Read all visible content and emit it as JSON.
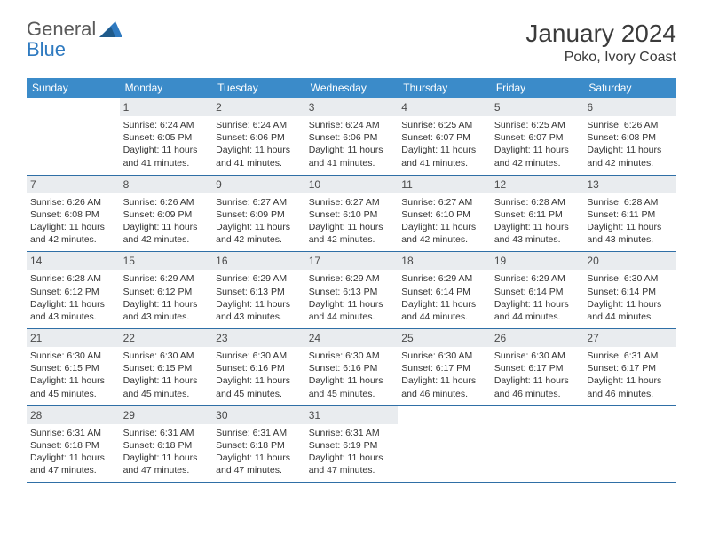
{
  "logo": {
    "word1": "General",
    "word2": "Blue"
  },
  "title": "January 2024",
  "location": "Poko, Ivory Coast",
  "colors": {
    "header_bg": "#3b8bc9",
    "header_text": "#ffffff",
    "daynum_bg": "#e9ecef",
    "week_border": "#2f6fa6",
    "body_text": "#333333",
    "logo_gray": "#5a5a5a",
    "logo_blue": "#2f7ac0"
  },
  "daysOfWeek": [
    "Sunday",
    "Monday",
    "Tuesday",
    "Wednesday",
    "Thursday",
    "Friday",
    "Saturday"
  ],
  "weeks": [
    [
      {
        "n": "",
        "empty": true
      },
      {
        "n": "1",
        "sr": "Sunrise: 6:24 AM",
        "ss": "Sunset: 6:05 PM",
        "d1": "Daylight: 11 hours",
        "d2": "and 41 minutes."
      },
      {
        "n": "2",
        "sr": "Sunrise: 6:24 AM",
        "ss": "Sunset: 6:06 PM",
        "d1": "Daylight: 11 hours",
        "d2": "and 41 minutes."
      },
      {
        "n": "3",
        "sr": "Sunrise: 6:24 AM",
        "ss": "Sunset: 6:06 PM",
        "d1": "Daylight: 11 hours",
        "d2": "and 41 minutes."
      },
      {
        "n": "4",
        "sr": "Sunrise: 6:25 AM",
        "ss": "Sunset: 6:07 PM",
        "d1": "Daylight: 11 hours",
        "d2": "and 41 minutes."
      },
      {
        "n": "5",
        "sr": "Sunrise: 6:25 AM",
        "ss": "Sunset: 6:07 PM",
        "d1": "Daylight: 11 hours",
        "d2": "and 42 minutes."
      },
      {
        "n": "6",
        "sr": "Sunrise: 6:26 AM",
        "ss": "Sunset: 6:08 PM",
        "d1": "Daylight: 11 hours",
        "d2": "and 42 minutes."
      }
    ],
    [
      {
        "n": "7",
        "sr": "Sunrise: 6:26 AM",
        "ss": "Sunset: 6:08 PM",
        "d1": "Daylight: 11 hours",
        "d2": "and 42 minutes."
      },
      {
        "n": "8",
        "sr": "Sunrise: 6:26 AM",
        "ss": "Sunset: 6:09 PM",
        "d1": "Daylight: 11 hours",
        "d2": "and 42 minutes."
      },
      {
        "n": "9",
        "sr": "Sunrise: 6:27 AM",
        "ss": "Sunset: 6:09 PM",
        "d1": "Daylight: 11 hours",
        "d2": "and 42 minutes."
      },
      {
        "n": "10",
        "sr": "Sunrise: 6:27 AM",
        "ss": "Sunset: 6:10 PM",
        "d1": "Daylight: 11 hours",
        "d2": "and 42 minutes."
      },
      {
        "n": "11",
        "sr": "Sunrise: 6:27 AM",
        "ss": "Sunset: 6:10 PM",
        "d1": "Daylight: 11 hours",
        "d2": "and 42 minutes."
      },
      {
        "n": "12",
        "sr": "Sunrise: 6:28 AM",
        "ss": "Sunset: 6:11 PM",
        "d1": "Daylight: 11 hours",
        "d2": "and 43 minutes."
      },
      {
        "n": "13",
        "sr": "Sunrise: 6:28 AM",
        "ss": "Sunset: 6:11 PM",
        "d1": "Daylight: 11 hours",
        "d2": "and 43 minutes."
      }
    ],
    [
      {
        "n": "14",
        "sr": "Sunrise: 6:28 AM",
        "ss": "Sunset: 6:12 PM",
        "d1": "Daylight: 11 hours",
        "d2": "and 43 minutes."
      },
      {
        "n": "15",
        "sr": "Sunrise: 6:29 AM",
        "ss": "Sunset: 6:12 PM",
        "d1": "Daylight: 11 hours",
        "d2": "and 43 minutes."
      },
      {
        "n": "16",
        "sr": "Sunrise: 6:29 AM",
        "ss": "Sunset: 6:13 PM",
        "d1": "Daylight: 11 hours",
        "d2": "and 43 minutes."
      },
      {
        "n": "17",
        "sr": "Sunrise: 6:29 AM",
        "ss": "Sunset: 6:13 PM",
        "d1": "Daylight: 11 hours",
        "d2": "and 44 minutes."
      },
      {
        "n": "18",
        "sr": "Sunrise: 6:29 AM",
        "ss": "Sunset: 6:14 PM",
        "d1": "Daylight: 11 hours",
        "d2": "and 44 minutes."
      },
      {
        "n": "19",
        "sr": "Sunrise: 6:29 AM",
        "ss": "Sunset: 6:14 PM",
        "d1": "Daylight: 11 hours",
        "d2": "and 44 minutes."
      },
      {
        "n": "20",
        "sr": "Sunrise: 6:30 AM",
        "ss": "Sunset: 6:14 PM",
        "d1": "Daylight: 11 hours",
        "d2": "and 44 minutes."
      }
    ],
    [
      {
        "n": "21",
        "sr": "Sunrise: 6:30 AM",
        "ss": "Sunset: 6:15 PM",
        "d1": "Daylight: 11 hours",
        "d2": "and 45 minutes."
      },
      {
        "n": "22",
        "sr": "Sunrise: 6:30 AM",
        "ss": "Sunset: 6:15 PM",
        "d1": "Daylight: 11 hours",
        "d2": "and 45 minutes."
      },
      {
        "n": "23",
        "sr": "Sunrise: 6:30 AM",
        "ss": "Sunset: 6:16 PM",
        "d1": "Daylight: 11 hours",
        "d2": "and 45 minutes."
      },
      {
        "n": "24",
        "sr": "Sunrise: 6:30 AM",
        "ss": "Sunset: 6:16 PM",
        "d1": "Daylight: 11 hours",
        "d2": "and 45 minutes."
      },
      {
        "n": "25",
        "sr": "Sunrise: 6:30 AM",
        "ss": "Sunset: 6:17 PM",
        "d1": "Daylight: 11 hours",
        "d2": "and 46 minutes."
      },
      {
        "n": "26",
        "sr": "Sunrise: 6:30 AM",
        "ss": "Sunset: 6:17 PM",
        "d1": "Daylight: 11 hours",
        "d2": "and 46 minutes."
      },
      {
        "n": "27",
        "sr": "Sunrise: 6:31 AM",
        "ss": "Sunset: 6:17 PM",
        "d1": "Daylight: 11 hours",
        "d2": "and 46 minutes."
      }
    ],
    [
      {
        "n": "28",
        "sr": "Sunrise: 6:31 AM",
        "ss": "Sunset: 6:18 PM",
        "d1": "Daylight: 11 hours",
        "d2": "and 47 minutes."
      },
      {
        "n": "29",
        "sr": "Sunrise: 6:31 AM",
        "ss": "Sunset: 6:18 PM",
        "d1": "Daylight: 11 hours",
        "d2": "and 47 minutes."
      },
      {
        "n": "30",
        "sr": "Sunrise: 6:31 AM",
        "ss": "Sunset: 6:18 PM",
        "d1": "Daylight: 11 hours",
        "d2": "and 47 minutes."
      },
      {
        "n": "31",
        "sr": "Sunrise: 6:31 AM",
        "ss": "Sunset: 6:19 PM",
        "d1": "Daylight: 11 hours",
        "d2": "and 47 minutes."
      },
      {
        "n": "",
        "empty": true
      },
      {
        "n": "",
        "empty": true
      },
      {
        "n": "",
        "empty": true
      }
    ]
  ]
}
